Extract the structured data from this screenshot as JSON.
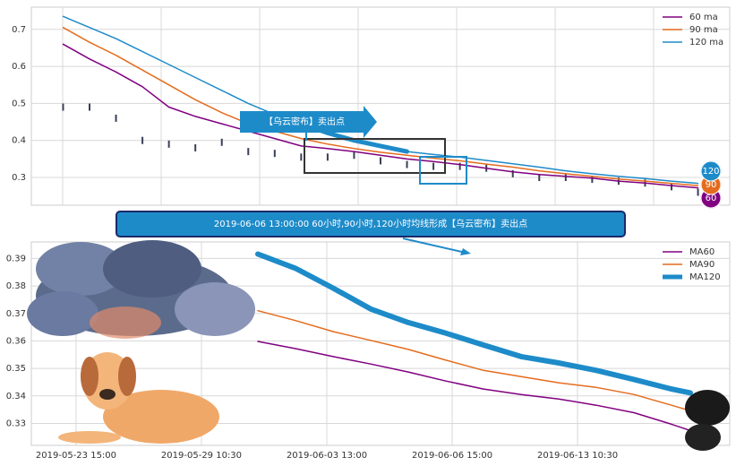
{
  "chart_data": [
    {
      "type": "line",
      "x": [
        0,
        1,
        2,
        3,
        4,
        5,
        6,
        7,
        8,
        9,
        10,
        11,
        12,
        13,
        14,
        15,
        16,
        17,
        18,
        19,
        20,
        21,
        22,
        23,
        24
      ],
      "xlim": [
        -1.2,
        25.2
      ],
      "ylim": [
        0.225,
        0.76
      ],
      "yticks": [
        0.3,
        0.4,
        0.5,
        0.6,
        0.7
      ],
      "grid": true,
      "legend": "upper right",
      "bars": {
        "color": "#3a3f58",
        "values": [
          0.49,
          0.49,
          0.46,
          0.4,
          0.39,
          0.38,
          0.395,
          0.37,
          0.365,
          0.355,
          0.355,
          0.36,
          0.345,
          0.335,
          0.33,
          0.33,
          0.325,
          0.31,
          0.3,
          0.3,
          0.295,
          0.29,
          0.285,
          0.275,
          0.26
        ]
      },
      "series": [
        {
          "name": "60 ma",
          "color": "#800080",
          "values": [
            0.66,
            0.62,
            0.585,
            0.545,
            0.49,
            0.465,
            0.445,
            0.425,
            0.405,
            0.385,
            0.378,
            0.37,
            0.36,
            0.35,
            0.343,
            0.335,
            0.325,
            0.315,
            0.308,
            0.303,
            0.298,
            0.29,
            0.285,
            0.278,
            0.272
          ]
        },
        {
          "name": "90 ma",
          "color": "#e46c1e",
          "values": [
            0.705,
            0.665,
            0.63,
            0.59,
            0.55,
            0.51,
            0.475,
            0.445,
            0.425,
            0.405,
            0.39,
            0.378,
            0.368,
            0.36,
            0.352,
            0.345,
            0.336,
            0.328,
            0.318,
            0.31,
            0.303,
            0.296,
            0.29,
            0.284,
            0.278
          ]
        },
        {
          "name": "120 ma",
          "color": "#1e8bc9",
          "values": [
            0.735,
            0.705,
            0.675,
            0.64,
            0.605,
            0.57,
            0.535,
            0.5,
            0.47,
            0.445,
            0.42,
            0.4,
            0.385,
            0.37,
            0.362,
            0.355,
            0.346,
            0.337,
            0.328,
            0.318,
            0.31,
            0.303,
            0.297,
            0.29,
            0.284
          ]
        }
      ],
      "arrow_label": "【乌云密布】卖出点",
      "end_labels": [
        "120",
        "90",
        "60"
      ]
    },
    {
      "type": "line",
      "x": [
        1.45,
        1.75,
        2.05,
        2.35,
        2.65,
        2.95,
        3.25,
        3.55,
        3.85,
        4.15,
        4.45,
        4.75,
        4.9
      ],
      "xlim": [
        -0.357,
        5.214
      ],
      "xticks": [
        {
          "value": 0,
          "label": "2019-05-23 15:00"
        },
        {
          "value": 1,
          "label": "2019-05-29 10:30"
        },
        {
          "value": 2,
          "label": "2019-06-03 13:00"
        },
        {
          "value": 3,
          "label": "2019-06-06 15:00"
        },
        {
          "value": 4,
          "label": "2019-06-13 10:30"
        }
      ],
      "ylim": [
        0.322,
        0.396
      ],
      "yticks": [
        0.33,
        0.34,
        0.35,
        0.36,
        0.37,
        0.38,
        0.39
      ],
      "grid": true,
      "legend": "upper right",
      "series": [
        {
          "name": "MA60",
          "color": "#800080",
          "values": [
            0.3598,
            0.3572,
            0.3543,
            0.3516,
            0.3487,
            0.3454,
            0.3425,
            0.3405,
            0.3389,
            0.3366,
            0.3339,
            0.3297,
            0.3274
          ]
        },
        {
          "name": "MA90",
          "color": "#e46c1e",
          "values": [
            0.371,
            0.3674,
            0.3634,
            0.3602,
            0.3569,
            0.353,
            0.3493,
            0.347,
            0.3448,
            0.3431,
            0.3405,
            0.3366,
            0.3346
          ]
        },
        {
          "name": "MA120",
          "color": "#1e8bc9",
          "values": [
            0.3916,
            0.3864,
            0.3792,
            0.3716,
            0.3667,
            0.3628,
            0.3585,
            0.3543,
            0.352,
            0.3493,
            0.346,
            0.3425,
            0.3411
          ]
        }
      ],
      "banner": "2019-06-06 13:00:00 60小时,90小时,120小时均线形成【乌云密布】卖出点"
    }
  ]
}
